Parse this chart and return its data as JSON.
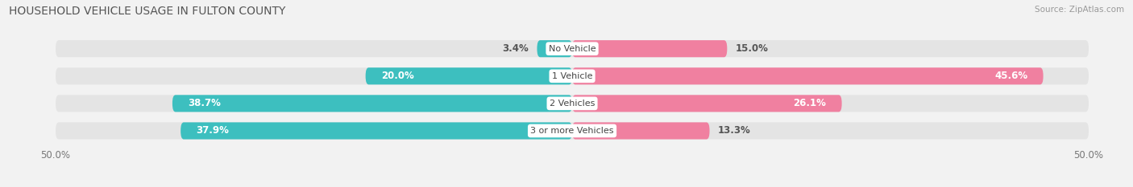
{
  "title": "HOUSEHOLD VEHICLE USAGE IN FULTON COUNTY",
  "source": "Source: ZipAtlas.com",
  "categories": [
    "No Vehicle",
    "1 Vehicle",
    "2 Vehicles",
    "3 or more Vehicles"
  ],
  "owner_values": [
    3.4,
    20.0,
    38.7,
    37.9
  ],
  "renter_values": [
    15.0,
    45.6,
    26.1,
    13.3
  ],
  "owner_color": "#3DBFBF",
  "renter_color": "#F080A0",
  "axis_limit": 50.0,
  "background_color": "#f2f2f2",
  "bar_bg_color": "#e4e4e4",
  "title_fontsize": 10,
  "bar_height": 0.62,
  "fig_width": 14.06,
  "fig_height": 2.33
}
